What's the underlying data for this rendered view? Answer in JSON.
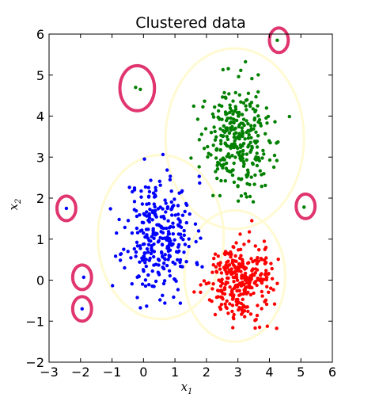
{
  "chart_data": {
    "type": "scatter",
    "title": "Clustered data",
    "xlabel": {
      "base": "x",
      "sub": "1"
    },
    "ylabel": {
      "base": "x",
      "sub": "2"
    },
    "xlim": [
      -3,
      6
    ],
    "ylim": [
      -2,
      6
    ],
    "xticks": [
      -3,
      -2,
      -1,
      0,
      1,
      2,
      3,
      4,
      5,
      6
    ],
    "yticks": [
      -2,
      -1,
      0,
      1,
      2,
      3,
      4,
      5,
      6
    ],
    "tick_labels_x": [
      "−3",
      "−2",
      "−1",
      "0",
      "1",
      "2",
      "3",
      "4",
      "5",
      "6"
    ],
    "tick_labels_y": [
      "−2",
      "−1",
      "0",
      "1",
      "2",
      "3",
      "4",
      "5",
      "6"
    ],
    "grid": false,
    "legend": "none",
    "series": [
      {
        "color": "#0000ff",
        "center": [
          0.5,
          1.1
        ],
        "spread": [
          0.55,
          0.72
        ],
        "count": 300,
        "seed": 11,
        "xrange": [
          -1.5,
          2.2
        ],
        "yrange": [
          -0.8,
          3.2
        ]
      },
      {
        "color": "#ff0000",
        "center": [
          3.0,
          0.0
        ],
        "spread": [
          0.52,
          0.45
        ],
        "count": 300,
        "seed": 29,
        "xrange": [
          1.5,
          4.3
        ],
        "yrange": [
          -1.3,
          2.0
        ]
      },
      {
        "color": "#008000",
        "center": [
          3.05,
          3.35
        ],
        "spread": [
          0.58,
          0.72
        ],
        "count": 300,
        "seed": 53,
        "xrange": [
          1.5,
          4.9
        ],
        "yrange": [
          1.9,
          5.8
        ]
      }
    ],
    "outliers": [
      {
        "x": -0.25,
        "y": 4.7,
        "color": "#008000"
      },
      {
        "x": -0.1,
        "y": 4.65,
        "color": "#008000"
      },
      {
        "x": 4.25,
        "y": 5.85,
        "color": "#008000"
      },
      {
        "x": 5.1,
        "y": 1.78,
        "color": "#008000"
      },
      {
        "x": -2.45,
        "y": 1.75,
        "color": "#0000ff"
      },
      {
        "x": -1.9,
        "y": 0.07,
        "color": "#0000ff"
      },
      {
        "x": -1.95,
        "y": -0.7,
        "color": "#0000ff"
      }
    ],
    "cluster_circles": [
      {
        "cx": 0.55,
        "cy": 1.05,
        "r": 2.0,
        "color": "#fffad2"
      },
      {
        "cx": 2.9,
        "cy": 0.1,
        "r": 1.6,
        "color": "#fffad2"
      },
      {
        "cx": 2.9,
        "cy": 3.45,
        "r": 2.2,
        "color": "#fffad2"
      }
    ],
    "outlier_circles": [
      {
        "cx": -0.2,
        "cy": 4.68,
        "r": 0.55,
        "color": "#e0356e"
      },
      {
        "cx": 4.3,
        "cy": 5.85,
        "r": 0.3,
        "color": "#e0356e"
      },
      {
        "cx": 5.15,
        "cy": 1.8,
        "r": 0.3,
        "color": "#e0356e"
      },
      {
        "cx": -2.45,
        "cy": 1.75,
        "r": 0.3,
        "color": "#e0356e"
      },
      {
        "cx": -1.95,
        "cy": 0.07,
        "r": 0.3,
        "color": "#e0356e"
      },
      {
        "cx": -1.95,
        "cy": -0.7,
        "r": 0.3,
        "color": "#e0356e"
      }
    ]
  }
}
